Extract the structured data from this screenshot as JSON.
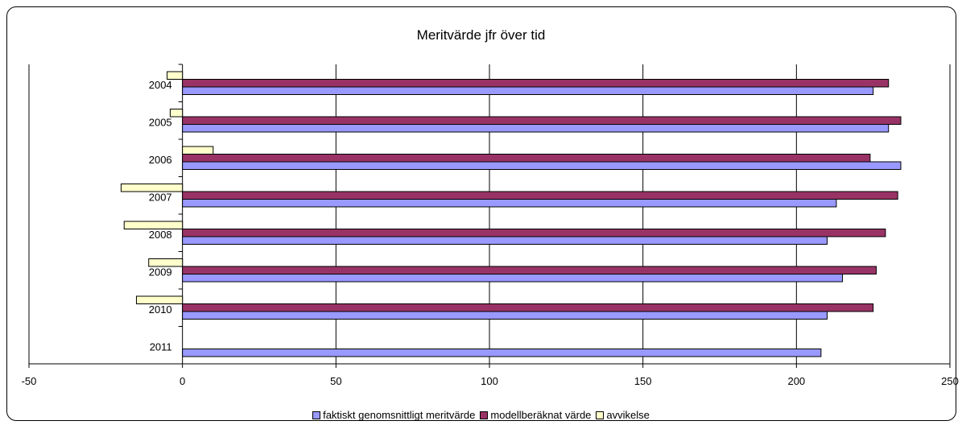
{
  "chart_data": {
    "type": "bar",
    "orientation": "horizontal",
    "title": "Meritvärde jfr över tid",
    "categories": [
      "2004",
      "2005",
      "2006",
      "2007",
      "2008",
      "2009",
      "2010",
      "2011"
    ],
    "series": [
      {
        "name": "faktiskt genomsnittligt meritvärde",
        "color": "#9999FF",
        "values": [
          225,
          230,
          234,
          213,
          210,
          215,
          210,
          208
        ]
      },
      {
        "name": "modellberäknat värde",
        "color": "#993366",
        "values": [
          230,
          234,
          224,
          233,
          229,
          226,
          225,
          null
        ]
      },
      {
        "name": "avvikelse",
        "color": "#FFFFCC",
        "values": [
          -5,
          -4,
          10,
          -20,
          -19,
          -11,
          -15,
          null
        ]
      }
    ],
    "xlim": [
      -50,
      250
    ],
    "xticks": [
      "-50",
      "0",
      "50",
      "100",
      "150",
      "200",
      "250"
    ],
    "grid": true,
    "legend": "bottom"
  }
}
